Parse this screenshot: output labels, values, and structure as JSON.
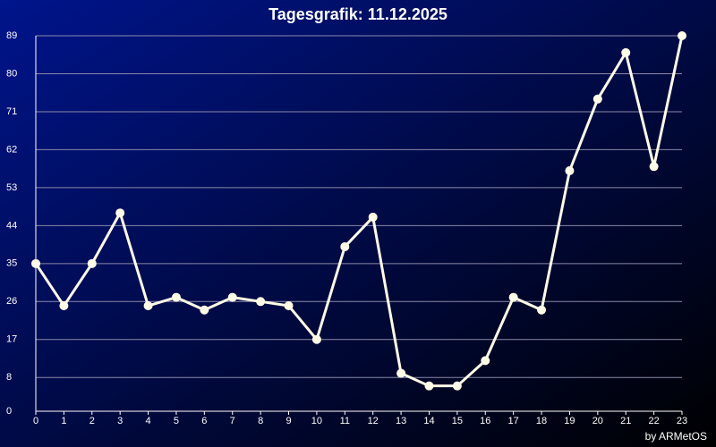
{
  "chart_data": {
    "type": "line",
    "title": "Tagesgrafik: 11.12.2025",
    "credit": "by ARMetOS",
    "x": [
      0,
      1,
      2,
      3,
      4,
      5,
      6,
      7,
      8,
      9,
      10,
      11,
      12,
      13,
      14,
      15,
      16,
      17,
      18,
      19,
      20,
      21,
      22,
      23
    ],
    "values": [
      35,
      25,
      35,
      47,
      25,
      27,
      24,
      27,
      26,
      25,
      17,
      39,
      46,
      9,
      6,
      6,
      12,
      27,
      24,
      57,
      74,
      85,
      58,
      89
    ],
    "color": "#fffbe6",
    "xlim": [
      0,
      23
    ],
    "ylim": [
      0,
      89
    ],
    "yticks": [
      0,
      8,
      17,
      26,
      35,
      44,
      53,
      62,
      71,
      80,
      89
    ],
    "grid": true
  }
}
